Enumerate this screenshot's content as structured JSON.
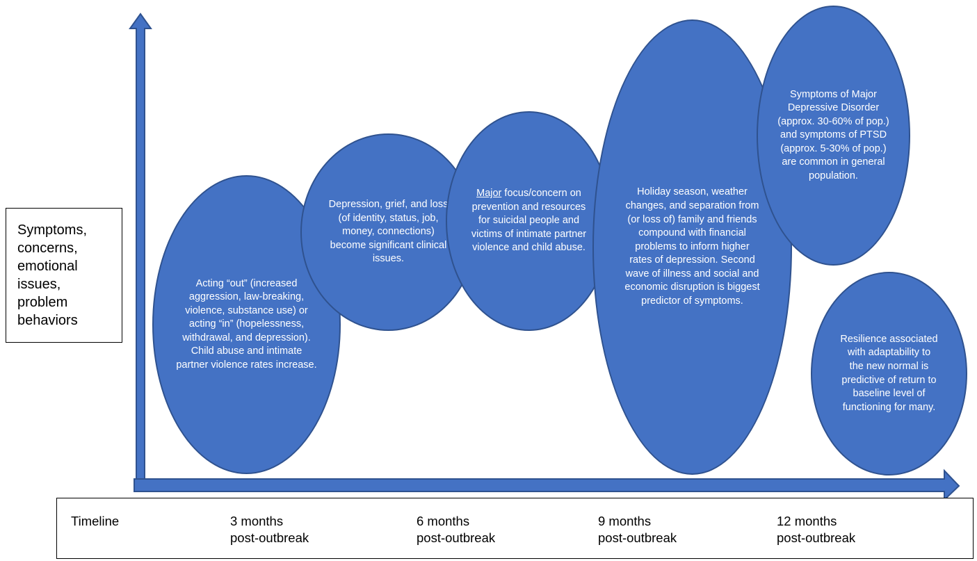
{
  "y_axis_label": "Symptoms,\nconcerns,\nemotional\nissues,\nproblem\nbehaviors",
  "phases": [
    {
      "id": "phase-1",
      "text": "Acting “out” (increased aggression, law-breaking, violence, substance use) or acting “in” (hopelessness, withdrawal, and depression). Child abuse and intimate partner violence rates increase."
    },
    {
      "id": "phase-2",
      "text": "Depression, grief, and loss (of identity, status, job, money, connections) become significant clinical issues."
    },
    {
      "id": "phase-3",
      "emphasis": "Major",
      "text": "focus/concern on prevention and resources for suicidal people and victims of intimate partner violence and child abuse."
    },
    {
      "id": "phase-4",
      "text": "Holiday season, weather changes, and separation from (or loss of) family and friends compound with financial problems to inform higher rates of depression. Second wave of illness and social and economic disruption is biggest predictor of symptoms."
    },
    {
      "id": "phase-5",
      "text": "Symptoms of Major Depressive Disorder (approx. 30-60% of pop.) and symptoms of PTSD (approx. 5-30% of pop.) are common in general population."
    },
    {
      "id": "phase-6",
      "text": "Resilience associated with adaptability to the new normal is predictive of return to baseline level of functioning for many."
    }
  ],
  "timeline": {
    "title": "Timeline",
    "marks": [
      {
        "period": "3 months",
        "suffix": "post-outbreak"
      },
      {
        "period": "6 months",
        "suffix": "post-outbreak"
      },
      {
        "period": "9 months",
        "suffix": "post-outbreak"
      },
      {
        "period": "12 months",
        "suffix": "post-outbreak"
      }
    ]
  },
  "colors": {
    "bubble_fill": "#4472c4",
    "bubble_border": "#2f528f",
    "axis": "#4472c4",
    "axis_border": "#2f528f"
  }
}
